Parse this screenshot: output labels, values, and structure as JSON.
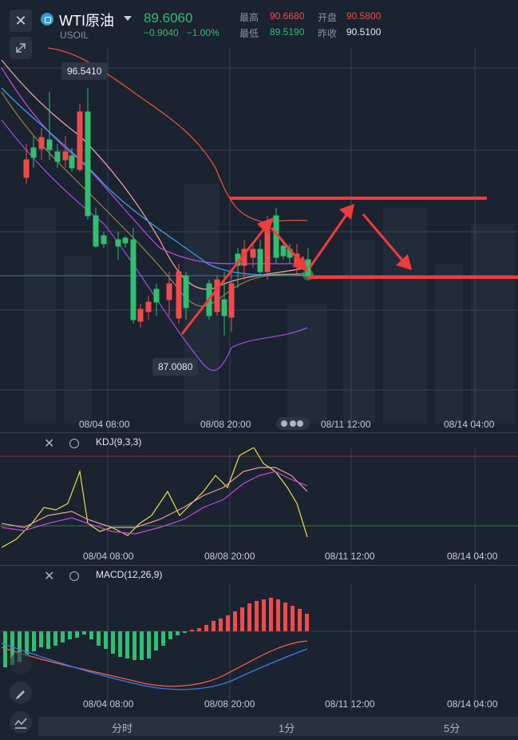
{
  "header": {
    "symbol": "WTI原油",
    "code": "USOIL",
    "price": "89.6060",
    "change": "−0.9040",
    "change_pct": "−1.00%",
    "high_label": "最高",
    "high": "90.6680",
    "open_label": "开盘",
    "open": "90.5800",
    "low_label": "最低",
    "low": "89.5190",
    "prev_label": "昨收",
    "prev": "90.5100"
  },
  "main_chart": {
    "max_tag": "96.5410",
    "min_tag": "87.0080",
    "x_ticks": [
      "08/04 08:00",
      "08/08 20:00",
      "08/11 12:00",
      "08/14 04:00"
    ]
  },
  "kdj": {
    "title": "KDJ(9,3,3)",
    "x_ticks": [
      "08/04 08:00",
      "08/08 20:00",
      "08/11 12:00",
      "08/14 04:00"
    ]
  },
  "macd": {
    "title": "MACD(12,26,9)",
    "x_ticks": [
      "08/04 08:00",
      "08/08 20:00",
      "08/11 12:00",
      "08/14 04:00"
    ]
  },
  "timeframes": [
    "分时",
    "1分",
    "5分"
  ],
  "colors": {
    "up": "#f04b4b",
    "down": "#2fbf71",
    "background": "#1b2230",
    "annotation": "#f23b3b"
  },
  "icons": {
    "close": "close-icon",
    "expand": "expand-icon",
    "settings": "gear-icon",
    "draw": "pencil-icon",
    "indicator": "indicator-icon"
  }
}
